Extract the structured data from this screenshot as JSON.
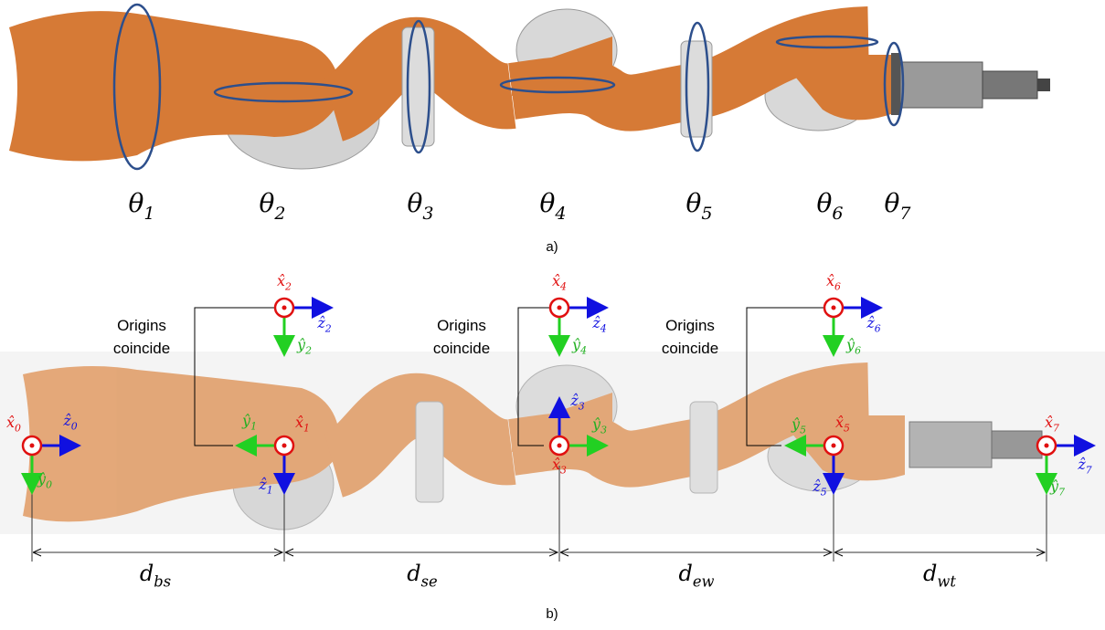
{
  "panel_a": {
    "joint_labels": [
      {
        "symbol": "θ",
        "sub": "1"
      },
      {
        "symbol": "θ",
        "sub": "2"
      },
      {
        "symbol": "θ",
        "sub": "3"
      },
      {
        "symbol": "θ",
        "sub": "4"
      },
      {
        "symbol": "θ",
        "sub": "5"
      },
      {
        "symbol": "θ",
        "sub": "6"
      },
      {
        "symbol": "θ",
        "sub": "7"
      }
    ],
    "caption": "a)"
  },
  "panel_b": {
    "frames": [
      {
        "x": {
          "symbol": "x̂",
          "sub": "0"
        },
        "y": {
          "symbol": "ŷ",
          "sub": "0"
        },
        "z": {
          "symbol": "ẑ",
          "sub": "0"
        }
      },
      {
        "x": {
          "symbol": "x̂",
          "sub": "1"
        },
        "y": {
          "symbol": "ŷ",
          "sub": "1"
        },
        "z": {
          "symbol": "ẑ",
          "sub": "1"
        }
      },
      {
        "x": {
          "symbol": "x̂",
          "sub": "2"
        },
        "y": {
          "symbol": "ŷ",
          "sub": "2"
        },
        "z": {
          "symbol": "ẑ",
          "sub": "2"
        }
      },
      {
        "x": {
          "symbol": "x̂",
          "sub": "3"
        },
        "y": {
          "symbol": "ŷ",
          "sub": "3"
        },
        "z": {
          "symbol": "ẑ",
          "sub": "3"
        }
      },
      {
        "x": {
          "symbol": "x̂",
          "sub": "4"
        },
        "y": {
          "symbol": "ŷ",
          "sub": "4"
        },
        "z": {
          "symbol": "ẑ",
          "sub": "4"
        }
      },
      {
        "x": {
          "symbol": "x̂",
          "sub": "5"
        },
        "y": {
          "symbol": "ŷ",
          "sub": "5"
        },
        "z": {
          "symbol": "ẑ",
          "sub": "5"
        }
      },
      {
        "x": {
          "symbol": "x̂",
          "sub": "6"
        },
        "y": {
          "symbol": "ŷ",
          "sub": "6"
        },
        "z": {
          "symbol": "ẑ",
          "sub": "6"
        }
      },
      {
        "x": {
          "symbol": "x̂",
          "sub": "7"
        },
        "y": {
          "symbol": "ŷ",
          "sub": "7"
        },
        "z": {
          "symbol": "ẑ",
          "sub": "7"
        }
      }
    ],
    "notes": [
      [
        "Origins",
        "coincide"
      ],
      [
        "Origins",
        "coincide"
      ],
      [
        "Origins",
        "coincide"
      ]
    ],
    "distances": [
      {
        "symbol": "d",
        "sub": "bs"
      },
      {
        "symbol": "d",
        "sub": "se"
      },
      {
        "symbol": "d",
        "sub": "ew"
      },
      {
        "symbol": "d",
        "sub": "wt"
      }
    ],
    "caption": "b)"
  }
}
